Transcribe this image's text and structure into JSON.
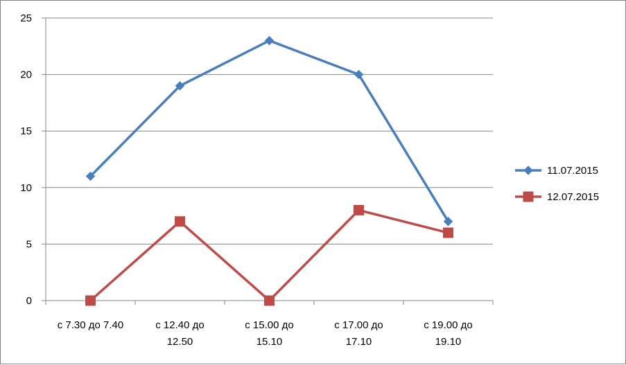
{
  "chart_data": {
    "type": "line",
    "title": "",
    "xlabel": "",
    "ylabel": "",
    "categories": [
      [
        "с 7.30 до 7.40"
      ],
      [
        "с 12.40 до",
        "12.50"
      ],
      [
        "с 15.00 до",
        "15.10"
      ],
      [
        "с 17.00 до",
        "17.10"
      ],
      [
        "с 19.00 до",
        "19.10"
      ]
    ],
    "ylim": [
      0,
      25
    ],
    "yticks": [
      0,
      5,
      10,
      15,
      20,
      25
    ],
    "grid": true,
    "legend_position": "right",
    "series": [
      {
        "name": "11.07.2015",
        "values": [
          11,
          19,
          23,
          20,
          7
        ],
        "color": "#4a7ebb",
        "marker": "diamond"
      },
      {
        "name": "12.07.2015",
        "values": [
          0,
          7,
          0,
          8,
          6
        ],
        "color": "#be4b48",
        "marker": "square"
      }
    ]
  }
}
